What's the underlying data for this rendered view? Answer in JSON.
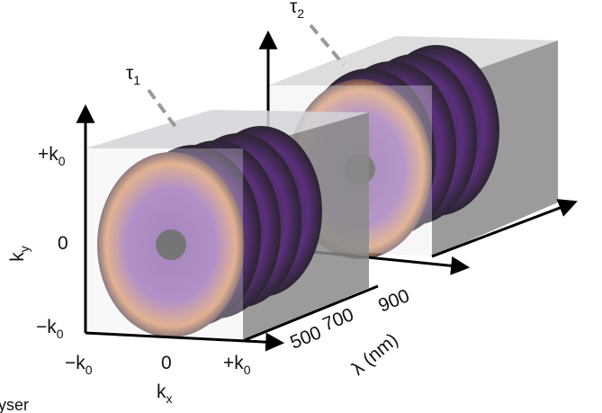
{
  "panels": [
    {
      "delay": {
        "base": "τ",
        "sub": "1"
      }
    },
    {
      "delay": {
        "base": "τ",
        "sub": "2"
      }
    }
  ],
  "axes": {
    "ky": {
      "base": "k",
      "sub": "y"
    },
    "kx": {
      "base": "k",
      "sub": "x"
    },
    "y_ticks": [
      {
        "sign": "+",
        "base": "k",
        "sub": "0"
      },
      {
        "text": "0"
      },
      {
        "sign": "−",
        "base": "k",
        "sub": "0"
      }
    ],
    "x_ticks": [
      {
        "sign": "−",
        "base": "k",
        "sub": "0"
      },
      {
        "text": "0"
      },
      {
        "sign": "+",
        "base": "k",
        "sub": "0"
      }
    ],
    "lambda": {
      "label": "λ (nm)",
      "ticks": [
        "500",
        "700",
        "900"
      ]
    }
  },
  "caption_fragment": "yser"
}
